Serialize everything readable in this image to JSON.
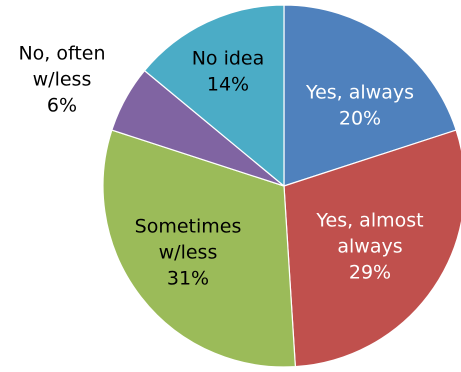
{
  "chart_data": {
    "type": "pie",
    "start_angle_deg": 0,
    "direction": "clockwise",
    "slices": [
      {
        "label": [
          "Yes, always"
        ],
        "percent_label": "20%",
        "value": 20,
        "color": "#4F81BD",
        "label_color": "#ffffff"
      },
      {
        "label": [
          "Yes, almost",
          "always"
        ],
        "percent_label": "29%",
        "value": 29,
        "color": "#C0504D",
        "label_color": "#ffffff"
      },
      {
        "label": [
          "Sometimes",
          "w/less"
        ],
        "percent_label": "31%",
        "value": 31,
        "color": "#9BBB59",
        "label_color": "#000000"
      },
      {
        "label": [
          "No, often",
          "w/less"
        ],
        "percent_label": "6%",
        "value": 6,
        "color": "#8064A2",
        "label_color": "#000000"
      },
      {
        "label": [
          "No idea"
        ],
        "percent_label": "14%",
        "value": 14,
        "color": "#4BACC6",
        "label_color": "#000000"
      }
    ]
  }
}
